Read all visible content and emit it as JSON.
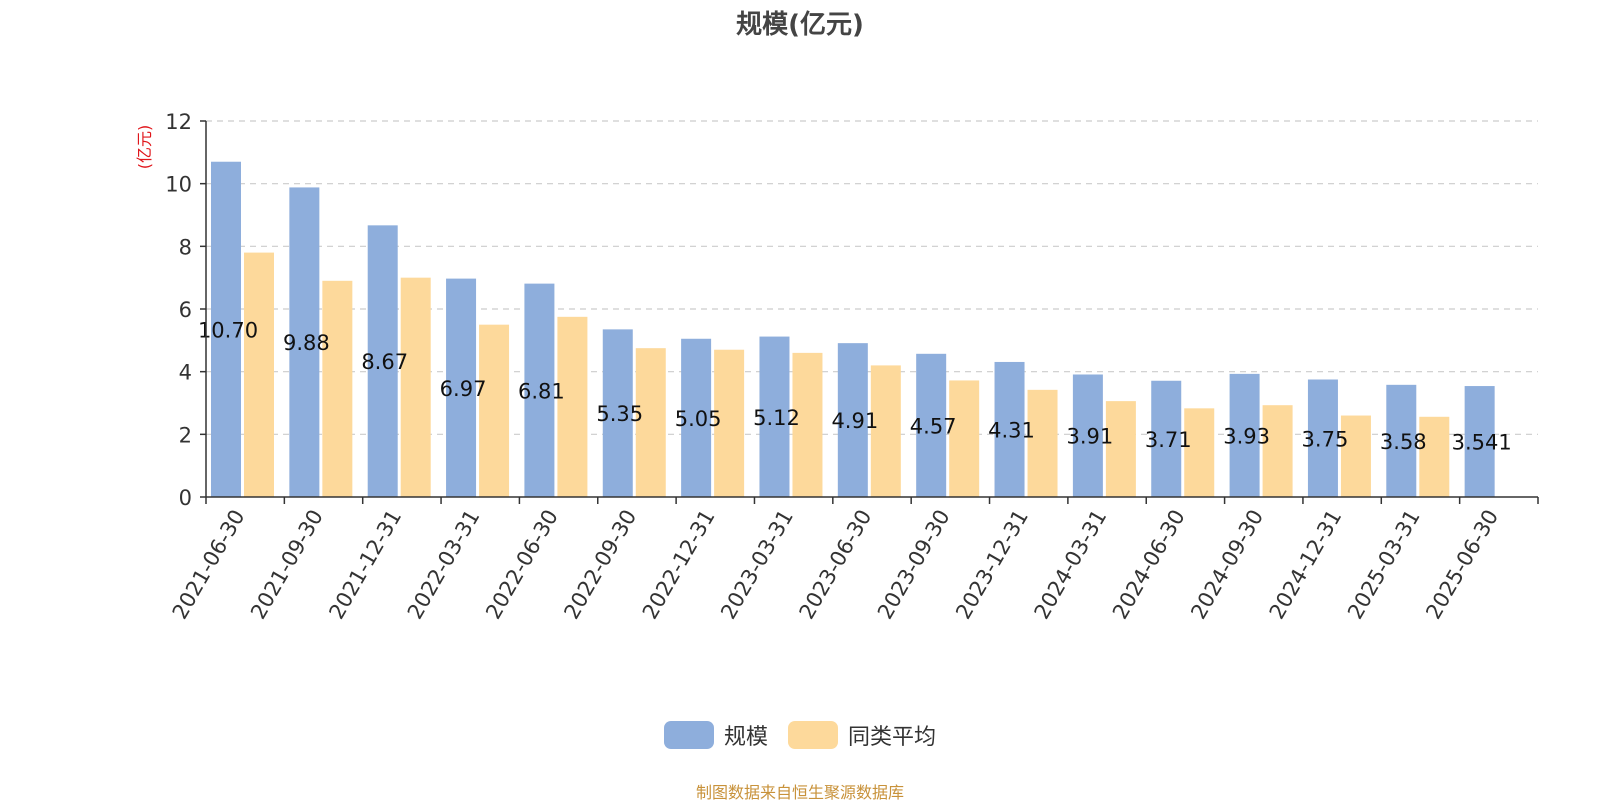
{
  "chart_data": {
    "type": "bar",
    "title": "规模(亿元)",
    "ylabel": "(亿元)",
    "ylim": [
      0,
      12
    ],
    "yticks": [
      0,
      2,
      4,
      6,
      8,
      10,
      12
    ],
    "categories": [
      "2021-06-30",
      "2021-09-30",
      "2021-12-31",
      "2022-03-31",
      "2022-06-30",
      "2022-09-30",
      "2022-12-31",
      "2023-03-31",
      "2023-06-30",
      "2023-09-30",
      "2023-12-31",
      "2024-03-31",
      "2024-06-30",
      "2024-09-30",
      "2024-12-31",
      "2025-03-31",
      "2025-06-30"
    ],
    "series": [
      {
        "name": "规模",
        "color": "#8eaedc",
        "values": [
          10.7,
          9.88,
          8.67,
          6.97,
          6.81,
          5.35,
          5.05,
          5.12,
          4.91,
          4.57,
          4.31,
          3.91,
          3.71,
          3.93,
          3.75,
          3.58,
          3.541
        ],
        "labels": [
          "10.70",
          "9.88",
          "8.67",
          "6.97",
          "6.81",
          "5.35",
          "5.05",
          "5.12",
          "4.91",
          "4.57",
          "4.31",
          "3.91",
          "3.71",
          "3.93",
          "3.75",
          "3.58",
          "3.541"
        ]
      },
      {
        "name": "同类平均",
        "color": "#fdd99b",
        "values": [
          7.8,
          6.9,
          7.0,
          5.5,
          5.75,
          4.75,
          4.7,
          4.6,
          4.2,
          3.72,
          3.42,
          3.06,
          2.83,
          2.93,
          2.6,
          2.56,
          null
        ]
      }
    ],
    "grid": true,
    "legend_position": "bottom-center"
  },
  "source_text": "制图数据来自恒生聚源数据库"
}
